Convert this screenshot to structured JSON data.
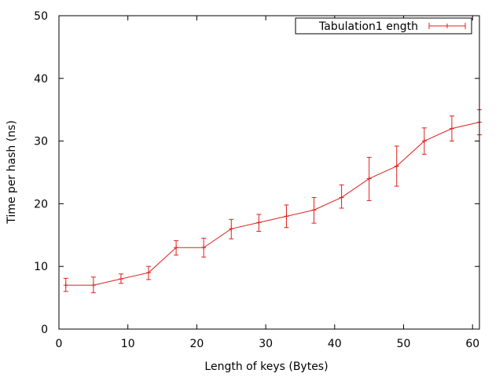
{
  "chart_data": {
    "type": "line",
    "title": "",
    "xlabel": "Length of keys (Bytes)",
    "ylabel": "Time per hash (ns)",
    "xlim": [
      0,
      61
    ],
    "ylim": [
      0,
      50
    ],
    "xticks": [
      0,
      10,
      20,
      30,
      40,
      50,
      60
    ],
    "yticks": [
      0,
      10,
      20,
      30,
      40,
      50
    ],
    "grid": false,
    "legend_position": "top-right",
    "series": [
      {
        "name": "Tabulation1 ength",
        "color": "#e0201c",
        "error_bars": true,
        "points": [
          {
            "x": 1,
            "y": 7,
            "lo": 6.0,
            "hi": 8.1
          },
          {
            "x": 5,
            "y": 7,
            "lo": 5.8,
            "hi": 8.3
          },
          {
            "x": 9,
            "y": 8,
            "lo": 7.3,
            "hi": 8.8
          },
          {
            "x": 13,
            "y": 9,
            "lo": 7.9,
            "hi": 10.0
          },
          {
            "x": 17,
            "y": 13,
            "lo": 11.8,
            "hi": 14.1
          },
          {
            "x": 21,
            "y": 13,
            "lo": 11.5,
            "hi": 14.5
          },
          {
            "x": 25,
            "y": 16,
            "lo": 14.4,
            "hi": 17.5
          },
          {
            "x": 29,
            "y": 17,
            "lo": 15.6,
            "hi": 18.3
          },
          {
            "x": 33,
            "y": 18,
            "lo": 16.2,
            "hi": 19.8
          },
          {
            "x": 37,
            "y": 19,
            "lo": 16.9,
            "hi": 21.0
          },
          {
            "x": 41,
            "y": 21,
            "lo": 19.3,
            "hi": 23.0
          },
          {
            "x": 45,
            "y": 24,
            "lo": 20.5,
            "hi": 27.4
          },
          {
            "x": 49,
            "y": 26,
            "lo": 22.8,
            "hi": 29.2
          },
          {
            "x": 53,
            "y": 30,
            "lo": 27.9,
            "hi": 32.1
          },
          {
            "x": 57,
            "y": 32,
            "lo": 30.0,
            "hi": 34.0
          },
          {
            "x": 61,
            "y": 33,
            "lo": 31.0,
            "hi": 35.0
          }
        ]
      }
    ]
  }
}
